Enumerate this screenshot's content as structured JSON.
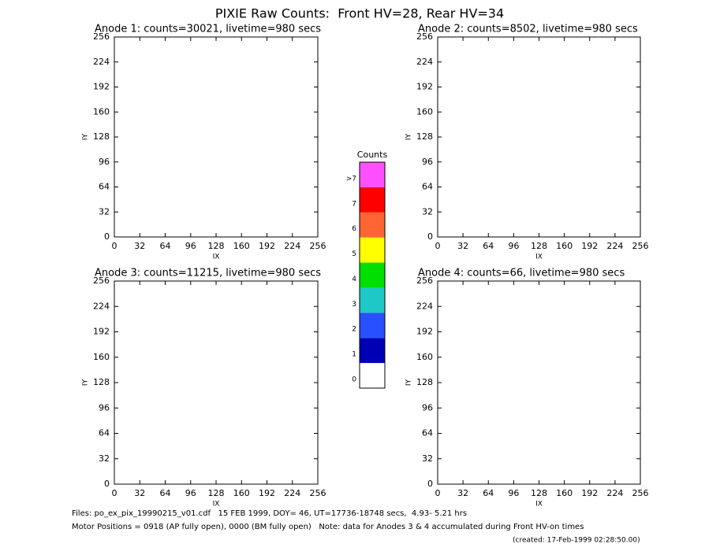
{
  "title": "PIXIE Raw Counts:  Front HV=28, Rear HV=34",
  "chart_data": [
    {
      "type": "heatmap",
      "title": "Anode 1: counts=30021, livetime=980 secs",
      "xlabel": "IX",
      "ylabel": "IY",
      "xlim": [
        0,
        256
      ],
      "ylim": [
        0,
        256
      ],
      "xticks": [
        0,
        32,
        64,
        96,
        128,
        160,
        192,
        224,
        256
      ],
      "yticks": [
        0,
        32,
        64,
        96,
        128,
        160,
        192,
        224,
        256
      ]
    },
    {
      "type": "heatmap",
      "title": "Anode 2: counts=8502, livetime=980 secs",
      "xlabel": "IX",
      "ylabel": "IY",
      "xlim": [
        0,
        256
      ],
      "ylim": [
        0,
        256
      ],
      "xticks": [
        0,
        32,
        64,
        96,
        128,
        160,
        192,
        224,
        256
      ],
      "yticks": [
        0,
        32,
        64,
        96,
        128,
        160,
        192,
        224,
        256
      ]
    },
    {
      "type": "heatmap",
      "title": "Anode 3: counts=11215, livetime=980 secs",
      "xlabel": "IX",
      "ylabel": "IY",
      "xlim": [
        0,
        256
      ],
      "ylim": [
        0,
        256
      ],
      "xticks": [
        0,
        32,
        64,
        96,
        128,
        160,
        192,
        224,
        256
      ],
      "yticks": [
        0,
        32,
        64,
        96,
        128,
        160,
        192,
        224,
        256
      ]
    },
    {
      "type": "heatmap",
      "title": "Anode 4: counts=66, livetime=980 secs",
      "xlabel": "IX",
      "ylabel": "IY",
      "xlim": [
        0,
        256
      ],
      "ylim": [
        0,
        256
      ],
      "xticks": [
        0,
        32,
        64,
        96,
        128,
        160,
        192,
        224,
        256
      ],
      "yticks": [
        0,
        32,
        64,
        96,
        128,
        160,
        192,
        224,
        256
      ]
    }
  ],
  "colorbar": {
    "title": "Counts",
    "levels": [
      {
        "label": "0",
        "color": "#ffffff"
      },
      {
        "label": "1",
        "color": "#0000b4"
      },
      {
        "label": "2",
        "color": "#2850ff"
      },
      {
        "label": "3",
        "color": "#1ec8c8"
      },
      {
        "label": "4",
        "color": "#00e000"
      },
      {
        "label": "5",
        "color": "#ffff00"
      },
      {
        "label": "6",
        "color": "#ff6432"
      },
      {
        "label": "7",
        "color": "#ff0000"
      },
      {
        "label": ">7",
        "color": "#ff50ff"
      }
    ]
  },
  "footer": {
    "files": "Files: po_ex_pix_19990215_v01.cdf   15 FEB 1999, DOY= 46, UT=17736-18748 secs,  4.93- 5.21 hrs",
    "motor": "Motor Positions = 0918 (AP fully open), 0000 (BM fully open)   Note: data for Anodes 3 & 4 accumulated during Front HV-on times",
    "created": "(created: 17-Feb-1999 02:28:50.00)"
  }
}
